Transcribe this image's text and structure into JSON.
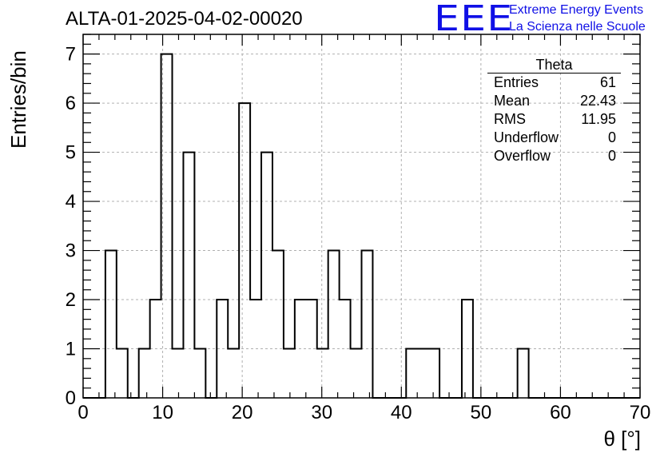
{
  "title": "ALTA-01-2025-04-02-00020",
  "logo": {
    "mark": "EEE",
    "line1": "Extreme Energy Events",
    "line2": "La Scienza nelle Scuole",
    "color": "#1010e6"
  },
  "stats_box": {
    "title": "Theta",
    "rows": [
      {
        "label": "Entries",
        "value": "61"
      },
      {
        "label": "Mean",
        "value": "22.43"
      },
      {
        "label": "RMS",
        "value": "11.95"
      },
      {
        "label": "Underflow",
        "value": "0"
      },
      {
        "label": "Overflow",
        "value": "0"
      }
    ]
  },
  "chart_data": {
    "type": "histogram",
    "title": "ALTA-01-2025-04-02-00020",
    "xlabel": "θ [°]",
    "ylabel": "Entries/bin",
    "xlim": [
      0,
      70
    ],
    "ylim": [
      0,
      7.4
    ],
    "x_ticks": [
      0,
      10,
      20,
      30,
      40,
      50,
      60,
      70
    ],
    "y_ticks": [
      0,
      1,
      2,
      3,
      4,
      5,
      6,
      7
    ],
    "grid": true,
    "line_color": "#000000",
    "bin_width": 1.4,
    "bin_edges_start": 0,
    "counts": [
      0,
      0,
      3,
      1,
      0,
      1,
      2,
      7,
      1,
      5,
      1,
      0,
      2,
      1,
      6,
      2,
      5,
      3,
      1,
      2,
      2,
      1,
      3,
      2,
      1,
      3,
      0,
      0,
      0,
      1,
      1,
      1,
      0,
      0,
      2,
      0,
      0,
      0,
      0,
      1,
      0,
      0,
      0,
      0,
      0,
      0,
      0,
      0,
      0,
      0
    ]
  }
}
